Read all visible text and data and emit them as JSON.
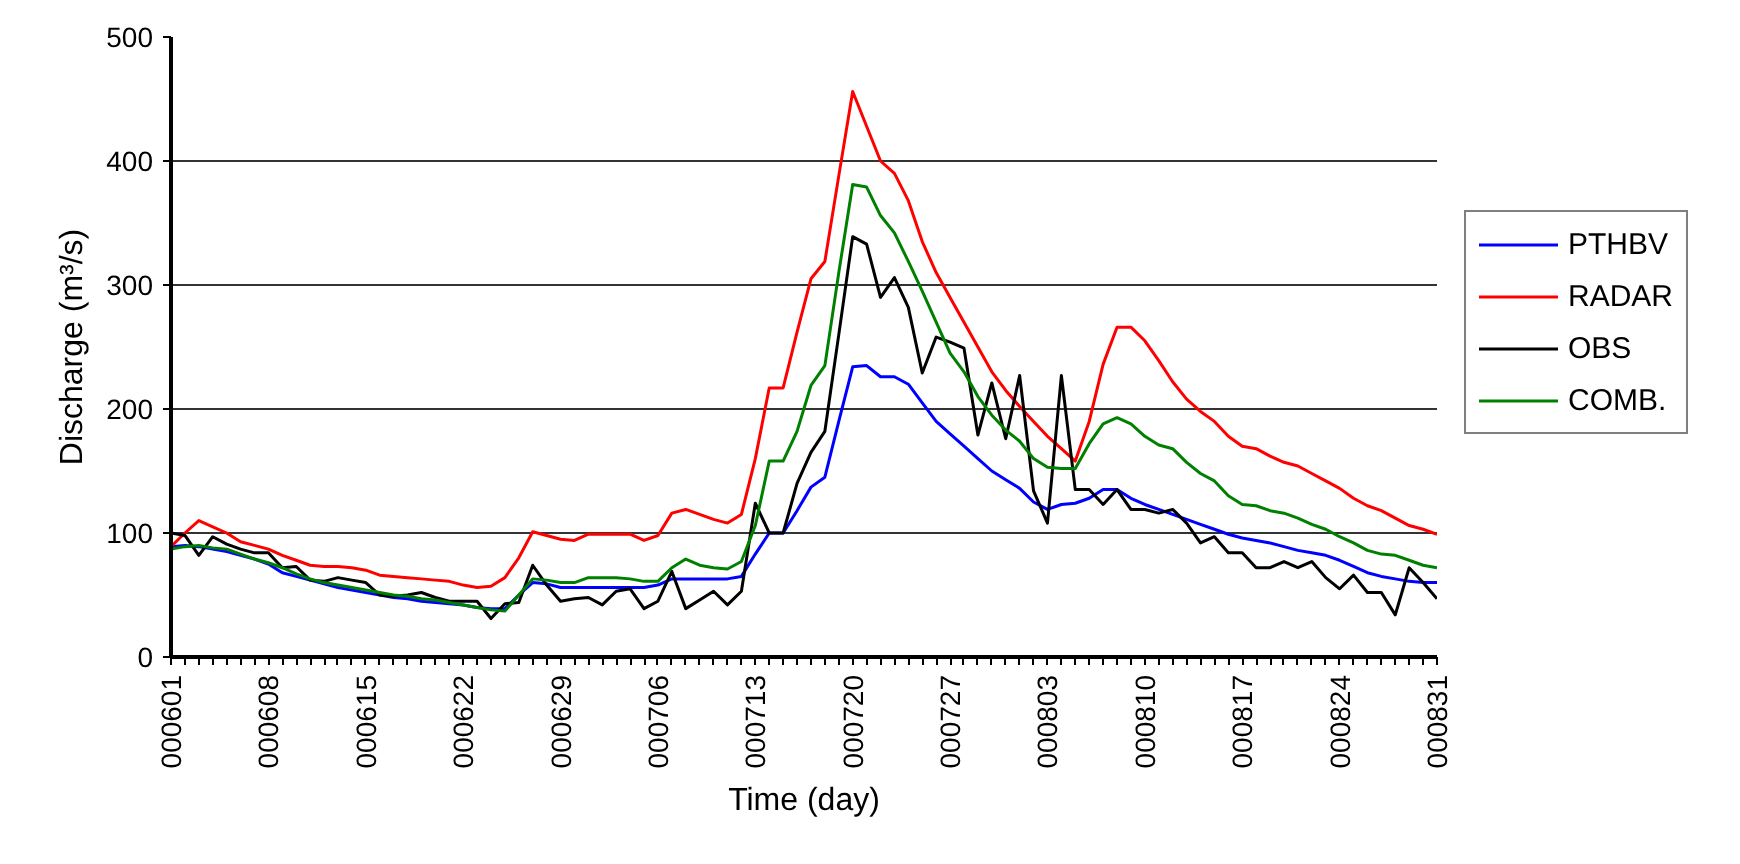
{
  "chart_data": {
    "type": "line",
    "xlabel": "Time (day)",
    "ylabel": "Discharge (m³/s)",
    "categories": [
      "000601",
      null,
      null,
      null,
      null,
      null,
      null,
      "000608",
      null,
      null,
      null,
      null,
      null,
      null,
      "000615",
      null,
      null,
      null,
      null,
      null,
      null,
      "000622",
      null,
      null,
      null,
      null,
      null,
      null,
      "000629",
      null,
      null,
      null,
      null,
      null,
      null,
      "000706",
      null,
      null,
      null,
      null,
      null,
      null,
      "000713",
      null,
      null,
      null,
      null,
      null,
      null,
      "000720",
      null,
      null,
      null,
      null,
      null,
      null,
      "000727",
      null,
      null,
      null,
      null,
      null,
      null,
      "000803",
      null,
      null,
      null,
      null,
      null,
      null,
      "000810",
      null,
      null,
      null,
      null,
      null,
      null,
      "000817",
      null,
      null,
      null,
      null,
      null,
      null,
      "000824",
      null,
      null,
      null,
      null,
      null,
      null,
      "000831"
    ],
    "ylim": [
      0,
      500
    ],
    "yticks": [
      0,
      100,
      200,
      300,
      400,
      500
    ],
    "grid": "y",
    "legend": "right",
    "line_style": "solid",
    "series": [
      {
        "name": "PTHBV",
        "color": "#0000ff",
        "values": [
          89,
          90,
          89,
          87,
          85,
          82,
          79,
          75,
          68,
          65,
          62,
          59,
          56,
          54,
          52,
          50,
          48,
          47,
          45,
          44,
          43,
          42,
          40,
          39,
          39,
          50,
          60,
          59,
          56,
          56,
          56,
          56,
          56,
          56,
          56,
          58,
          63,
          63,
          63,
          63,
          63,
          65,
          83,
          100,
          100,
          118,
          137,
          145,
          190,
          234,
          235,
          226,
          226,
          220,
          205,
          190,
          180,
          170,
          160,
          150,
          143,
          136,
          125,
          119,
          123,
          124,
          128,
          135,
          135,
          128,
          123,
          119,
          115,
          111,
          107,
          103,
          99,
          96,
          94,
          92,
          89,
          86,
          84,
          82,
          78,
          73,
          68,
          65,
          63,
          61,
          60,
          60
        ]
      },
      {
        "name": "RADAR",
        "color": "#ff0000",
        "values": [
          89,
          100,
          110,
          105,
          100,
          93,
          90,
          87,
          82,
          78,
          74,
          73,
          73,
          72,
          70,
          66,
          65,
          64,
          63,
          62,
          61,
          58,
          56,
          57,
          64,
          80,
          101,
          98,
          95,
          94,
          99,
          99,
          99,
          99,
          94,
          98,
          116,
          119,
          115,
          111,
          108,
          115,
          160,
          217,
          217,
          262,
          305,
          319,
          388,
          456,
          428,
          400,
          390,
          368,
          335,
          310,
          290,
          270,
          250,
          230,
          215,
          202,
          190,
          178,
          168,
          158,
          190,
          236,
          266,
          266,
          255,
          239,
          222,
          208,
          198,
          190,
          178,
          170,
          168,
          162,
          157,
          154,
          148,
          142,
          136,
          128,
          122,
          118,
          112,
          106,
          103,
          99
        ]
      },
      {
        "name": "OBS",
        "color": "#000000",
        "values": [
          100,
          98,
          82,
          97,
          91,
          87,
          84,
          84,
          72,
          73,
          62,
          61,
          64,
          62,
          60,
          50,
          49,
          50,
          52,
          48,
          45,
          45,
          45,
          31,
          43,
          44,
          74,
          58,
          45,
          47,
          48,
          42,
          53,
          55,
          39,
          45,
          69,
          39,
          46,
          53,
          42,
          53,
          124,
          100,
          100,
          140,
          165,
          182,
          260,
          339,
          333,
          290,
          306,
          282,
          229,
          258,
          254,
          249,
          179,
          221,
          176,
          227,
          134,
          108,
          227,
          135,
          135,
          123,
          135,
          119,
          119,
          116,
          119,
          108,
          92,
          97,
          84,
          84,
          72,
          72,
          77,
          72,
          77,
          64,
          55,
          66,
          52,
          52,
          34,
          72,
          60,
          47
        ]
      },
      {
        "name": "COMB.",
        "color": "#008000",
        "values": [
          87,
          89,
          90,
          88,
          87,
          83,
          79,
          76,
          72,
          67,
          63,
          60,
          58,
          56,
          54,
          52,
          50,
          49,
          47,
          46,
          44,
          42,
          40,
          38,
          37,
          50,
          63,
          62,
          60,
          60,
          64,
          64,
          64,
          63,
          61,
          61,
          72,
          79,
          74,
          72,
          71,
          77,
          106,
          158,
          158,
          182,
          219,
          235,
          310,
          381,
          379,
          356,
          342,
          319,
          295,
          270,
          245,
          230,
          210,
          195,
          183,
          174,
          160,
          153,
          152,
          152,
          172,
          188,
          193,
          188,
          178,
          171,
          168,
          157,
          148,
          142,
          130,
          123,
          122,
          118,
          116,
          112,
          107,
          103,
          97,
          92,
          86,
          83,
          82,
          78,
          74,
          72
        ]
      }
    ]
  }
}
